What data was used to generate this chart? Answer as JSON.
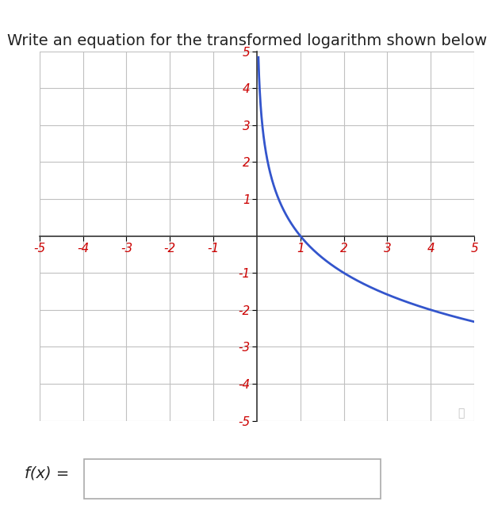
{
  "title": "Write an equation for the transformed logarithm shown below",
  "title_fontsize": 14,
  "title_color": "#222222",
  "xlim": [
    -5,
    5
  ],
  "ylim": [
    -5,
    5
  ],
  "xticks": [
    -5,
    -4,
    -3,
    -2,
    -1,
    1,
    2,
    3,
    4,
    5
  ],
  "yticks": [
    -5,
    -4,
    -3,
    -2,
    -1,
    1,
    2,
    3,
    4,
    5
  ],
  "tick_label_color": "#cc0000",
  "tick_fontsize": 11,
  "grid_color": "#c0c0c0",
  "axis_color": "#333333",
  "curve_color": "#3355cc",
  "curve_linewidth": 2.0,
  "background_color": "#ffffff",
  "fx_label": "f(x) =",
  "fx_label_fontsize": 14,
  "search_icon_color": "#999999"
}
